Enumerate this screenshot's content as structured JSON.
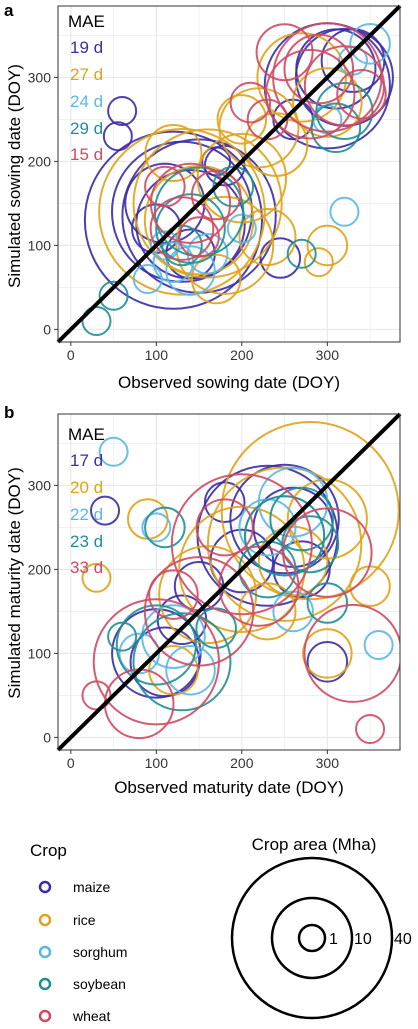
{
  "colors": {
    "maize": "#3b2ca6",
    "rice": "#e0a317",
    "sorghum": "#5ab8e3",
    "soybean": "#1f8f94",
    "wheat": "#cf4a63",
    "identity_line": "#000000",
    "grid": "#e8e8e8",
    "panel_border": "#333333"
  },
  "chart_data": [
    {
      "type": "scatter",
      "panel_label": "a",
      "title": "",
      "xlabel": "Observed sowing date (DOY)",
      "ylabel": "Simulated sowing date (DOY)",
      "xlim": [
        -15,
        385
      ],
      "ylim": [
        -15,
        385
      ],
      "xticks": [
        0,
        100,
        200,
        300
      ],
      "yticks": [
        0,
        100,
        200,
        300
      ],
      "grid": true,
      "identity_line": true,
      "mae_label": "MAE",
      "mae": [
        {
          "crop": "maize",
          "value": "19 d"
        },
        {
          "crop": "rice",
          "value": "27 d"
        },
        {
          "crop": "sorghum",
          "value": "24 d"
        },
        {
          "crop": "soybean",
          "value": "29 d"
        },
        {
          "crop": "wheat",
          "value": "15 d"
        }
      ],
      "series": [
        {
          "crop": "maize",
          "points": [
            [
              120,
              130,
              40
            ],
            [
              130,
              140,
              25
            ],
            [
              140,
              125,
              15
            ],
            [
              110,
              150,
              8
            ],
            [
              150,
              135,
              30
            ],
            [
              100,
              120,
              3
            ],
            [
              300,
              290,
              20
            ],
            [
              320,
              300,
              12
            ],
            [
              330,
              320,
              5
            ],
            [
              310,
              310,
              8
            ],
            [
              260,
              250,
              2
            ],
            [
              170,
              200,
              1
            ],
            [
              140,
              90,
              3
            ],
            [
              245,
              85,
              2
            ],
            [
              60,
              260,
              1
            ],
            [
              55,
              230,
              1
            ],
            [
              180,
              195,
              2
            ]
          ]
        },
        {
          "crop": "rice",
          "points": [
            [
              130,
              140,
              35
            ],
            [
              160,
              150,
              28
            ],
            [
              150,
              130,
              15
            ],
            [
              200,
              180,
              10
            ],
            [
              220,
              240,
              8
            ],
            [
              180,
              100,
              12
            ],
            [
              270,
              300,
              10
            ],
            [
              300,
              270,
              6
            ],
            [
              230,
              110,
              4
            ],
            [
              170,
              60,
              3
            ],
            [
              240,
              220,
              5
            ],
            [
              300,
              100,
              2
            ],
            [
              290,
              80,
              1
            ],
            [
              200,
              250,
              3
            ],
            [
              120,
              210,
              4
            ]
          ]
        },
        {
          "crop": "sorghum",
          "points": [
            [
              120,
              80,
              2
            ],
            [
              140,
              70,
              3
            ],
            [
              110,
              100,
              1
            ],
            [
              160,
              90,
              2
            ],
            [
              320,
              140,
              1
            ],
            [
              300,
              250,
              1
            ],
            [
              330,
              320,
              1
            ],
            [
              350,
              340,
              2
            ],
            [
              200,
              120,
              1
            ],
            [
              90,
              60,
              1
            ]
          ]
        },
        {
          "crop": "soybean",
          "points": [
            [
              150,
              140,
              10
            ],
            [
              140,
              120,
              6
            ],
            [
              320,
              260,
              4
            ],
            [
              310,
              240,
              3
            ],
            [
              270,
              90,
              1
            ],
            [
              50,
              40,
              1
            ],
            [
              30,
              10,
              1
            ],
            [
              130,
              100,
              2
            ],
            [
              190,
              170,
              2
            ]
          ]
        },
        {
          "crop": "wheat",
          "points": [
            [
              140,
              150,
              8
            ],
            [
              130,
              120,
              5
            ],
            [
              300,
              300,
              15
            ],
            [
              280,
              280,
              10
            ],
            [
              320,
              290,
              8
            ],
            [
              290,
              310,
              6
            ],
            [
              340,
              280,
              3
            ],
            [
              250,
              330,
              4
            ],
            [
              210,
              270,
              2
            ],
            [
              170,
              160,
              3
            ],
            [
              230,
              250,
              2
            ],
            [
              110,
              170,
              2
            ],
            [
              150,
              110,
              2
            ]
          ]
        }
      ]
    },
    {
      "type": "scatter",
      "panel_label": "b",
      "title": "",
      "xlabel": "Observed maturity date (DOY)",
      "ylabel": "Simulated maturity date (DOY)",
      "xlim": [
        -15,
        385
      ],
      "ylim": [
        -15,
        385
      ],
      "xticks": [
        0,
        100,
        200,
        300
      ],
      "yticks": [
        0,
        100,
        200,
        300
      ],
      "grid": true,
      "identity_line": true,
      "mae_label": "MAE",
      "mae": [
        {
          "crop": "maize",
          "value": "17 d"
        },
        {
          "crop": "rice",
          "value": "20 d"
        },
        {
          "crop": "sorghum",
          "value": "22 d"
        },
        {
          "crop": "soybean",
          "value": "23 d"
        },
        {
          "crop": "wheat",
          "value": "33 d"
        }
      ],
      "series": [
        {
          "crop": "maize",
          "points": [
            [
              100,
              100,
              10
            ],
            [
              110,
              90,
              6
            ],
            [
              230,
              240,
              25
            ],
            [
              250,
              260,
              15
            ],
            [
              260,
              250,
              8
            ],
            [
              200,
              210,
              5
            ],
            [
              300,
              90,
              2
            ],
            [
              180,
              280,
              2
            ],
            [
              40,
              270,
              1
            ],
            [
              130,
              140,
              3
            ],
            [
              270,
              200,
              4
            ],
            [
              150,
              180,
              3
            ]
          ]
        },
        {
          "crop": "rice",
          "points": [
            [
              280,
              270,
              40
            ],
            [
              250,
              230,
              30
            ],
            [
              200,
              200,
              20
            ],
            [
              160,
              170,
              12
            ],
            [
              300,
              260,
              8
            ],
            [
              260,
              210,
              6
            ],
            [
              120,
              80,
              3
            ],
            [
              30,
              190,
              1
            ],
            [
              90,
              260,
              2
            ],
            [
              230,
              150,
              4
            ],
            [
              300,
              100,
              3
            ],
            [
              350,
              180,
              2
            ]
          ]
        },
        {
          "crop": "sorghum",
          "points": [
            [
              120,
              120,
              5
            ],
            [
              140,
              80,
              3
            ],
            [
              230,
              250,
              4
            ],
            [
              250,
              240,
              8
            ],
            [
              260,
              280,
              6
            ],
            [
              100,
              250,
              1
            ],
            [
              50,
              340,
              1
            ],
            [
              360,
              110,
              1
            ],
            [
              260,
              150,
              2
            ],
            [
              80,
              100,
              2
            ]
          ]
        },
        {
          "crop": "soybean",
          "points": [
            [
              130,
              90,
              12
            ],
            [
              100,
              110,
              8
            ],
            [
              250,
              240,
              8
            ],
            [
              270,
              260,
              5
            ],
            [
              280,
              230,
              4
            ],
            [
              230,
              200,
              4
            ],
            [
              300,
              160,
              2
            ],
            [
              110,
              250,
              2
            ],
            [
              60,
              120,
              1
            ],
            [
              170,
              130,
              2
            ]
          ]
        },
        {
          "crop": "wheat",
          "points": [
            [
              200,
              230,
              25
            ],
            [
              150,
              150,
              15
            ],
            [
              330,
              100,
              12
            ],
            [
              300,
              220,
              10
            ],
            [
              220,
              180,
              8
            ],
            [
              100,
              90,
              20
            ],
            [
              80,
              40,
              6
            ],
            [
              180,
              250,
              4
            ],
            [
              350,
              10,
              1
            ],
            [
              30,
              50,
              1
            ],
            [
              120,
              170,
              3
            ]
          ]
        }
      ]
    }
  ],
  "legend": {
    "crop_title": "Crop",
    "crops": [
      {
        "key": "maize",
        "label": "maize"
      },
      {
        "key": "rice",
        "label": "rice"
      },
      {
        "key": "sorghum",
        "label": "sorghum"
      },
      {
        "key": "soybean",
        "label": "soybean"
      },
      {
        "key": "wheat",
        "label": "wheat"
      }
    ],
    "area_title": "Crop area (Mha)",
    "area_values": [
      1,
      10,
      40
    ],
    "area_labels": [
      "1",
      "10",
      "40"
    ]
  }
}
